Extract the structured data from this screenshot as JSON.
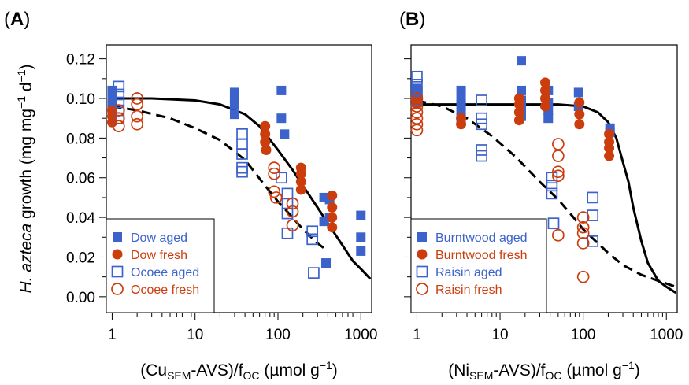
{
  "chart_data": [
    {
      "panel_label": "A",
      "type": "scatter",
      "xlabel": "(Cu_SEM-AVS)/f_OC (µmol g⁻¹)",
      "xlabel_parts": {
        "pre": "(Cu",
        "sub": "SEM",
        "mid": "-AVS)/f",
        "sub2": "OC",
        "post": " (µmol g",
        "sup": "−1",
        "end": ")"
      },
      "xscale": "log",
      "xlim": [
        0.85,
        1350
      ],
      "xticks": [
        "1",
        "10",
        "100",
        "1000"
      ],
      "ylabel": "H. azteca growth (mg mg⁻¹ d⁻¹)",
      "ylim": [
        -0.008,
        0.127
      ],
      "yticks": [
        "0.00",
        "0.02",
        "0.04",
        "0.06",
        "0.08",
        "0.10",
        "0.12"
      ],
      "legend_position": "bottom-left",
      "series": [
        {
          "name": "Dow aged",
          "color": "#3c62cc",
          "marker": "filled-square",
          "points": [
            [
              1,
              0.104
            ],
            [
              1,
              0.1
            ],
            [
              1,
              0.097
            ],
            [
              1,
              0.095
            ],
            [
              1,
              0.093
            ],
            [
              30,
              0.103
            ],
            [
              30,
              0.1
            ],
            [
              30,
              0.097
            ],
            [
              30,
              0.092
            ],
            [
              110,
              0.104
            ],
            [
              110,
              0.09
            ],
            [
              120,
              0.082
            ],
            [
              360,
              0.05
            ],
            [
              360,
              0.038
            ],
            [
              380,
              0.017
            ],
            [
              420,
              0.049
            ],
            [
              420,
              0.04
            ],
            [
              1000,
              0.041
            ],
            [
              1000,
              0.03
            ],
            [
              1000,
              0.023
            ]
          ]
        },
        {
          "name": "Dow fresh",
          "color": "#cc3d0e",
          "marker": "filled-circle",
          "points": [
            [
              1,
              0.094
            ],
            [
              1,
              0.091
            ],
            [
              1,
              0.088
            ],
            [
              70,
              0.086
            ],
            [
              70,
              0.082
            ],
            [
              70,
              0.078
            ],
            [
              72,
              0.074
            ],
            [
              190,
              0.065
            ],
            [
              190,
              0.062
            ],
            [
              190,
              0.058
            ],
            [
              190,
              0.054
            ],
            [
              450,
              0.051
            ],
            [
              450,
              0.045
            ],
            [
              450,
              0.04
            ],
            [
              450,
              0.035
            ]
          ]
        },
        {
          "name": "Ocoee aged",
          "color": "#3c62cc",
          "marker": "open-square",
          "points": [
            [
              1.2,
              0.106
            ],
            [
              1.2,
              0.102
            ],
            [
              1.2,
              0.098
            ],
            [
              1.2,
              0.094
            ],
            [
              1.2,
              0.09
            ],
            [
              37,
              0.082
            ],
            [
              37,
              0.077
            ],
            [
              37,
              0.072
            ],
            [
              37,
              0.065
            ],
            [
              37,
              0.063
            ],
            [
              110,
              0.06
            ],
            [
              130,
              0.052
            ],
            [
              130,
              0.047
            ],
            [
              130,
              0.042
            ],
            [
              130,
              0.032
            ],
            [
              260,
              0.033
            ],
            [
              260,
              0.029
            ],
            [
              270,
              0.012
            ]
          ]
        },
        {
          "name": "Ocoee fresh",
          "color": "#cc3d0e",
          "marker": "open-circle",
          "points": [
            [
              1.2,
              0.094
            ],
            [
              1.2,
              0.09
            ],
            [
              1.2,
              0.086
            ],
            [
              2,
              0.1
            ],
            [
              2,
              0.097
            ],
            [
              2,
              0.091
            ],
            [
              2,
              0.087
            ],
            [
              90,
              0.065
            ],
            [
              90,
              0.062
            ],
            [
              90,
              0.053
            ],
            [
              95,
              0.05
            ],
            [
              150,
              0.047
            ],
            [
              150,
              0.043
            ],
            [
              150,
              0.036
            ]
          ]
        }
      ],
      "curves": [
        {
          "style": "solid",
          "color": "#000000",
          "points": [
            [
              1,
              0.1
            ],
            [
              3,
              0.1
            ],
            [
              10,
              0.099
            ],
            [
              20,
              0.097
            ],
            [
              40,
              0.092
            ],
            [
              60,
              0.086
            ],
            [
              100,
              0.074
            ],
            [
              150,
              0.064
            ],
            [
              200,
              0.056
            ],
            [
              300,
              0.045
            ],
            [
              400,
              0.037
            ],
            [
              600,
              0.026
            ],
            [
              800,
              0.018
            ],
            [
              1000,
              0.014
            ],
            [
              1300,
              0.009
            ]
          ]
        },
        {
          "style": "dashed",
          "color": "#000000",
          "points": [
            [
              1,
              0.096
            ],
            [
              2,
              0.094
            ],
            [
              5,
              0.09
            ],
            [
              10,
              0.085
            ],
            [
              20,
              0.079
            ],
            [
              40,
              0.069
            ],
            [
              70,
              0.056
            ],
            [
              100,
              0.048
            ],
            [
              150,
              0.04
            ],
            [
              200,
              0.034
            ],
            [
              300,
              0.027
            ],
            [
              400,
              0.023
            ]
          ]
        }
      ]
    },
    {
      "panel_label": "B",
      "type": "scatter",
      "xlabel": "(Ni_SEM-AVS)/f_OC (µmol g⁻¹)",
      "xlabel_parts": {
        "pre": "(Ni",
        "sub": "SEM",
        "mid": "-AVS)/f",
        "sub2": "OC",
        "post": " (µmol g",
        "sup": "−1",
        "end": ")"
      },
      "xscale": "log",
      "xlim": [
        0.85,
        1350
      ],
      "xticks": [
        "1",
        "10",
        "100",
        "1000"
      ],
      "ylim": [
        -0.008,
        0.127
      ],
      "legend_position": "bottom-left",
      "series": [
        {
          "name": "Burntwood aged",
          "color": "#3c62cc",
          "marker": "filled-square",
          "points": [
            [
              1,
              0.105
            ],
            [
              1,
              0.101
            ],
            [
              1,
              0.098
            ],
            [
              3.4,
              0.104
            ],
            [
              3.4,
              0.1
            ],
            [
              3.4,
              0.097
            ],
            [
              3.4,
              0.093
            ],
            [
              3.4,
              0.09
            ],
            [
              18,
              0.119
            ],
            [
              18,
              0.104
            ],
            [
              18,
              0.099
            ],
            [
              18,
              0.095
            ],
            [
              18,
              0.091
            ],
            [
              38,
              0.104
            ],
            [
              38,
              0.098
            ],
            [
              38,
              0.094
            ],
            [
              38,
              0.09
            ],
            [
              88,
              0.103
            ],
            [
              88,
              0.096
            ],
            [
              210,
              0.085
            ],
            [
              210,
              0.083
            ]
          ]
        },
        {
          "name": "Burntwood fresh",
          "color": "#cc3d0e",
          "marker": "filled-circle",
          "points": [
            [
              1,
              0.1
            ],
            [
              1,
              0.097
            ],
            [
              3.4,
              0.09
            ],
            [
              3.4,
              0.087
            ],
            [
              17,
              0.1
            ],
            [
              17,
              0.097
            ],
            [
              17,
              0.093
            ],
            [
              17,
              0.089
            ],
            [
              35,
              0.108
            ],
            [
              35,
              0.104
            ],
            [
              35,
              0.1
            ],
            [
              35,
              0.096
            ],
            [
              90,
              0.098
            ],
            [
              90,
              0.092
            ],
            [
              90,
              0.087
            ],
            [
              205,
              0.082
            ],
            [
              205,
              0.078
            ],
            [
              205,
              0.075
            ],
            [
              205,
              0.071
            ]
          ]
        },
        {
          "name": "Raisin aged",
          "color": "#3c62cc",
          "marker": "open-square",
          "points": [
            [
              1,
              0.111
            ],
            [
              1,
              0.107
            ],
            [
              1,
              0.103
            ],
            [
              1,
              0.099
            ],
            [
              6,
              0.099
            ],
            [
              6,
              0.09
            ],
            [
              6,
              0.087
            ],
            [
              6,
              0.074
            ],
            [
              6,
              0.071
            ],
            [
              42,
              0.06
            ],
            [
              42,
              0.056
            ],
            [
              42,
              0.052
            ],
            [
              44,
              0.037
            ],
            [
              130,
              0.05
            ],
            [
              130,
              0.041
            ],
            [
              130,
              0.028
            ]
          ]
        },
        {
          "name": "Raisin fresh",
          "color": "#cc3d0e",
          "marker": "open-circle",
          "points": [
            [
              1,
              0.1
            ],
            [
              1,
              0.096
            ],
            [
              1,
              0.093
            ],
            [
              1,
              0.09
            ],
            [
              1,
              0.087
            ],
            [
              1,
              0.084
            ],
            [
              50,
              0.077
            ],
            [
              50,
              0.071
            ],
            [
              50,
              0.063
            ],
            [
              50,
              0.061
            ],
            [
              50,
              0.031
            ],
            [
              100,
              0.04
            ],
            [
              100,
              0.035
            ],
            [
              100,
              0.032
            ],
            [
              100,
              0.027
            ],
            [
              100,
              0.01
            ]
          ]
        }
      ],
      "curves": [
        {
          "style": "solid",
          "color": "#000000",
          "points": [
            [
              1,
              0.097
            ],
            [
              10,
              0.097
            ],
            [
              50,
              0.097
            ],
            [
              100,
              0.096
            ],
            [
              150,
              0.093
            ],
            [
              200,
              0.088
            ],
            [
              250,
              0.08
            ],
            [
              300,
              0.068
            ],
            [
              350,
              0.058
            ],
            [
              400,
              0.045
            ],
            [
              500,
              0.028
            ],
            [
              600,
              0.017
            ],
            [
              800,
              0.008
            ],
            [
              1000,
              0.005
            ],
            [
              1300,
              0.002
            ]
          ]
        },
        {
          "style": "dashed",
          "color": "#000000",
          "points": [
            [
              1,
              0.099
            ],
            [
              2,
              0.096
            ],
            [
              4,
              0.09
            ],
            [
              8,
              0.081
            ],
            [
              15,
              0.071
            ],
            [
              30,
              0.058
            ],
            [
              50,
              0.049
            ],
            [
              80,
              0.039
            ],
            [
              100,
              0.034
            ],
            [
              150,
              0.027
            ],
            [
              200,
              0.022
            ],
            [
              300,
              0.016
            ],
            [
              500,
              0.011
            ],
            [
              800,
              0.008
            ],
            [
              1300,
              0.005
            ]
          ]
        }
      ]
    }
  ]
}
